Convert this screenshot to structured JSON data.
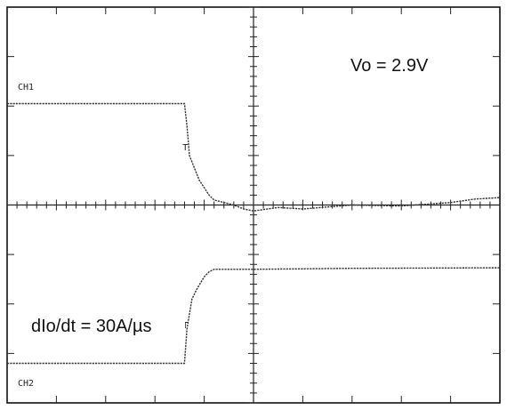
{
  "chart_data": {
    "type": "line",
    "title": "",
    "xlabel": "",
    "ylabel": "",
    "divisions": {
      "x": 10,
      "y": 8
    },
    "xlim": [
      -5,
      5
    ],
    "ylim": [
      -4,
      4
    ],
    "grid": false,
    "annotations": {
      "vo": "Vo = 2.9V",
      "slew": "dIo/dt = 30A/µs",
      "ch1_label": "CH1",
      "ch2_label": "CH2",
      "trigger_marker": "T"
    },
    "series": [
      {
        "name": "CH1",
        "x": [
          -5.0,
          -1.4,
          -1.35,
          -1.3,
          -1.2,
          -1.1,
          -1.0,
          -0.9,
          -0.8,
          -0.6,
          -0.4,
          -0.2,
          0.0,
          0.5,
          1.0,
          2.0,
          3.0,
          4.0,
          4.5,
          5.0
        ],
        "y": [
          2.05,
          2.05,
          1.6,
          1.0,
          0.75,
          0.5,
          0.35,
          0.2,
          0.1,
          0.05,
          0.0,
          -0.08,
          -0.12,
          -0.05,
          -0.08,
          0.0,
          -0.02,
          0.05,
          0.12,
          0.15
        ]
      },
      {
        "name": "CH2",
        "x": [
          -5.0,
          -1.4,
          -1.35,
          -1.25,
          -1.15,
          -1.0,
          -0.9,
          -0.8,
          0.0,
          2.0,
          5.0
        ],
        "y": [
          -3.2,
          -3.2,
          -2.5,
          -1.9,
          -1.7,
          -1.45,
          -1.35,
          -1.3,
          -1.3,
          -1.28,
          -1.27
        ]
      }
    ]
  }
}
